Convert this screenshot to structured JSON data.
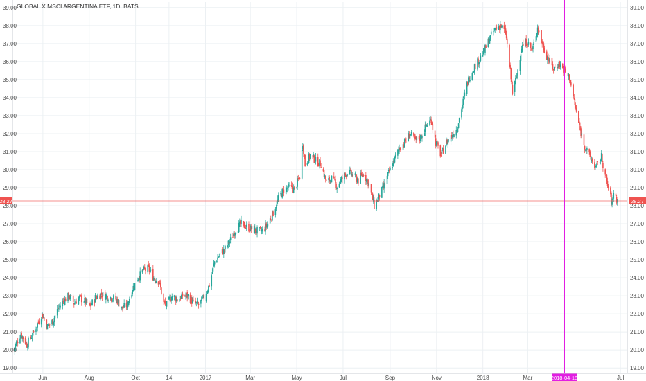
{
  "chart_data": {
    "type": "candlestick",
    "title": "GLOBAL X MSCI ARGENTINA ETF, 1D, BATS",
    "ylim": [
      18.7,
      39.3
    ],
    "y_ticks": [
      "19.00",
      "20.00",
      "21.00",
      "22.00",
      "23.00",
      "24.00",
      "25.00",
      "26.00",
      "27.00",
      "28.00",
      "29.00",
      "30.00",
      "31.00",
      "32.00",
      "33.00",
      "34.00",
      "35.00",
      "36.00",
      "37.00",
      "38.00",
      "39.00"
    ],
    "x_ticks": [
      {
        "label": "Jun",
        "date": "2016-06-01"
      },
      {
        "label": "Aug",
        "date": "2016-08-01"
      },
      {
        "label": "Oct",
        "date": "2016-10-01"
      },
      {
        "label": "14",
        "date": "2016-11-14"
      },
      {
        "label": "2017",
        "date": "2017-01-01"
      },
      {
        "label": "Mar",
        "date": "2017-03-01"
      },
      {
        "label": "May",
        "date": "2017-05-01"
      },
      {
        "label": "Jul",
        "date": "2017-07-01"
      },
      {
        "label": "Sep",
        "date": "2017-09-01"
      },
      {
        "label": "Nov",
        "date": "2017-11-01"
      },
      {
        "label": "2018",
        "date": "2018-01-01"
      },
      {
        "label": "Mar",
        "date": "2018-03-01"
      },
      {
        "label": "Jul",
        "date": "2018-07-01"
      }
    ],
    "x_range": [
      "2016-04-22",
      "2018-07-10"
    ],
    "up_color": "#26a69a",
    "down_color": "#ef5350",
    "price_line": {
      "value": 28.27,
      "label": "28.27",
      "color": "#ef5350"
    },
    "vertical_marker": {
      "date": "2018-04-18",
      "label": "2018-04-18",
      "color": "#e21ee2"
    },
    "close_path": [
      [
        "2016-04-22",
        19.9
      ],
      [
        "2016-05-03",
        20.9
      ],
      [
        "2016-05-11",
        20.3
      ],
      [
        "2016-05-20",
        21.0
      ],
      [
        "2016-05-31",
        22.0
      ],
      [
        "2016-06-07",
        21.3
      ],
      [
        "2016-06-14",
        21.6
      ],
      [
        "2016-06-21",
        22.3
      ],
      [
        "2016-06-28",
        22.7
      ],
      [
        "2016-07-05",
        23.0
      ],
      [
        "2016-07-12",
        22.6
      ],
      [
        "2016-07-19",
        22.9
      ],
      [
        "2016-07-26",
        22.7
      ],
      [
        "2016-08-02",
        22.4
      ],
      [
        "2016-08-09",
        22.9
      ],
      [
        "2016-08-16",
        23.1
      ],
      [
        "2016-08-23",
        23.0
      ],
      [
        "2016-08-30",
        22.9
      ],
      [
        "2016-09-06",
        22.8
      ],
      [
        "2016-09-13",
        22.3
      ],
      [
        "2016-09-20",
        22.5
      ],
      [
        "2016-09-27",
        23.4
      ],
      [
        "2016-10-04",
        24.0
      ],
      [
        "2016-10-11",
        24.4
      ],
      [
        "2016-10-18",
        24.5
      ],
      [
        "2016-10-25",
        24.0
      ],
      [
        "2016-11-01",
        23.8
      ],
      [
        "2016-11-07",
        22.6
      ],
      [
        "2016-11-11",
        22.5
      ],
      [
        "2016-11-18",
        23.0
      ],
      [
        "2016-11-25",
        22.8
      ],
      [
        "2016-12-02",
        23.0
      ],
      [
        "2016-12-09",
        23.0
      ],
      [
        "2016-12-16",
        22.6
      ],
      [
        "2016-12-23",
        22.5
      ],
      [
        "2016-12-30",
        22.9
      ],
      [
        "2017-01-06",
        23.6
      ],
      [
        "2017-01-13",
        24.9
      ],
      [
        "2017-01-20",
        25.3
      ],
      [
        "2017-01-27",
        25.6
      ],
      [
        "2017-02-03",
        26.1
      ],
      [
        "2017-02-10",
        26.7
      ],
      [
        "2017-02-17",
        27.0
      ],
      [
        "2017-02-24",
        26.8
      ],
      [
        "2017-03-03",
        26.7
      ],
      [
        "2017-03-10",
        26.6
      ],
      [
        "2017-03-17",
        26.6
      ],
      [
        "2017-03-24",
        27.0
      ],
      [
        "2017-03-31",
        27.6
      ],
      [
        "2017-04-07",
        28.4
      ],
      [
        "2017-04-14",
        28.9
      ],
      [
        "2017-04-21",
        29.0
      ],
      [
        "2017-04-28",
        28.9
      ],
      [
        "2017-05-05",
        29.6
      ],
      [
        "2017-05-09",
        31.5
      ],
      [
        "2017-05-12",
        30.3
      ],
      [
        "2017-05-19",
        30.8
      ],
      [
        "2017-05-26",
        30.5
      ],
      [
        "2017-06-02",
        30.3
      ],
      [
        "2017-06-09",
        29.3
      ],
      [
        "2017-06-16",
        29.5
      ],
      [
        "2017-06-23",
        29.1
      ],
      [
        "2017-06-30",
        29.5
      ],
      [
        "2017-07-07",
        29.9
      ],
      [
        "2017-07-14",
        29.7
      ],
      [
        "2017-07-21",
        29.4
      ],
      [
        "2017-07-28",
        29.8
      ],
      [
        "2017-08-04",
        29.2
      ],
      [
        "2017-08-11",
        28.0
      ],
      [
        "2017-08-16",
        28.4
      ],
      [
        "2017-08-23",
        29.0
      ],
      [
        "2017-08-30",
        29.8
      ],
      [
        "2017-09-06",
        30.5
      ],
      [
        "2017-09-13",
        31.2
      ],
      [
        "2017-09-20",
        31.5
      ],
      [
        "2017-09-27",
        32.0
      ],
      [
        "2017-10-04",
        31.6
      ],
      [
        "2017-10-11",
        31.8
      ],
      [
        "2017-10-18",
        32.4
      ],
      [
        "2017-10-25",
        32.8
      ],
      [
        "2017-10-31",
        31.5
      ],
      [
        "2017-11-07",
        30.8
      ],
      [
        "2017-11-14",
        31.5
      ],
      [
        "2017-11-21",
        31.9
      ],
      [
        "2017-11-28",
        32.3
      ],
      [
        "2017-12-05",
        33.6
      ],
      [
        "2017-12-12",
        34.9
      ],
      [
        "2017-12-19",
        35.6
      ],
      [
        "2017-12-27",
        36.1
      ],
      [
        "2018-01-03",
        36.6
      ],
      [
        "2018-01-10",
        37.3
      ],
      [
        "2018-01-17",
        37.8
      ],
      [
        "2018-01-24",
        38.0
      ],
      [
        "2018-01-31",
        37.6
      ],
      [
        "2018-02-05",
        35.8
      ],
      [
        "2018-02-09",
        34.3
      ],
      [
        "2018-02-14",
        35.1
      ],
      [
        "2018-02-21",
        36.8
      ],
      [
        "2018-02-28",
        37.1
      ],
      [
        "2018-03-07",
        36.6
      ],
      [
        "2018-03-14",
        37.9
      ],
      [
        "2018-03-21",
        36.9
      ],
      [
        "2018-03-28",
        36.1
      ],
      [
        "2018-04-04",
        35.6
      ],
      [
        "2018-04-11",
        35.9
      ],
      [
        "2018-04-18",
        35.5
      ],
      [
        "2018-04-25",
        35.1
      ],
      [
        "2018-05-02",
        33.6
      ],
      [
        "2018-05-09",
        32.2
      ],
      [
        "2018-05-16",
        31.2
      ],
      [
        "2018-05-23",
        30.6
      ],
      [
        "2018-05-30",
        30.1
      ],
      [
        "2018-06-06",
        30.7
      ],
      [
        "2018-06-13",
        29.3
      ],
      [
        "2018-06-20",
        28.1
      ],
      [
        "2018-06-22",
        28.8
      ],
      [
        "2018-06-27",
        28.27
      ]
    ]
  }
}
